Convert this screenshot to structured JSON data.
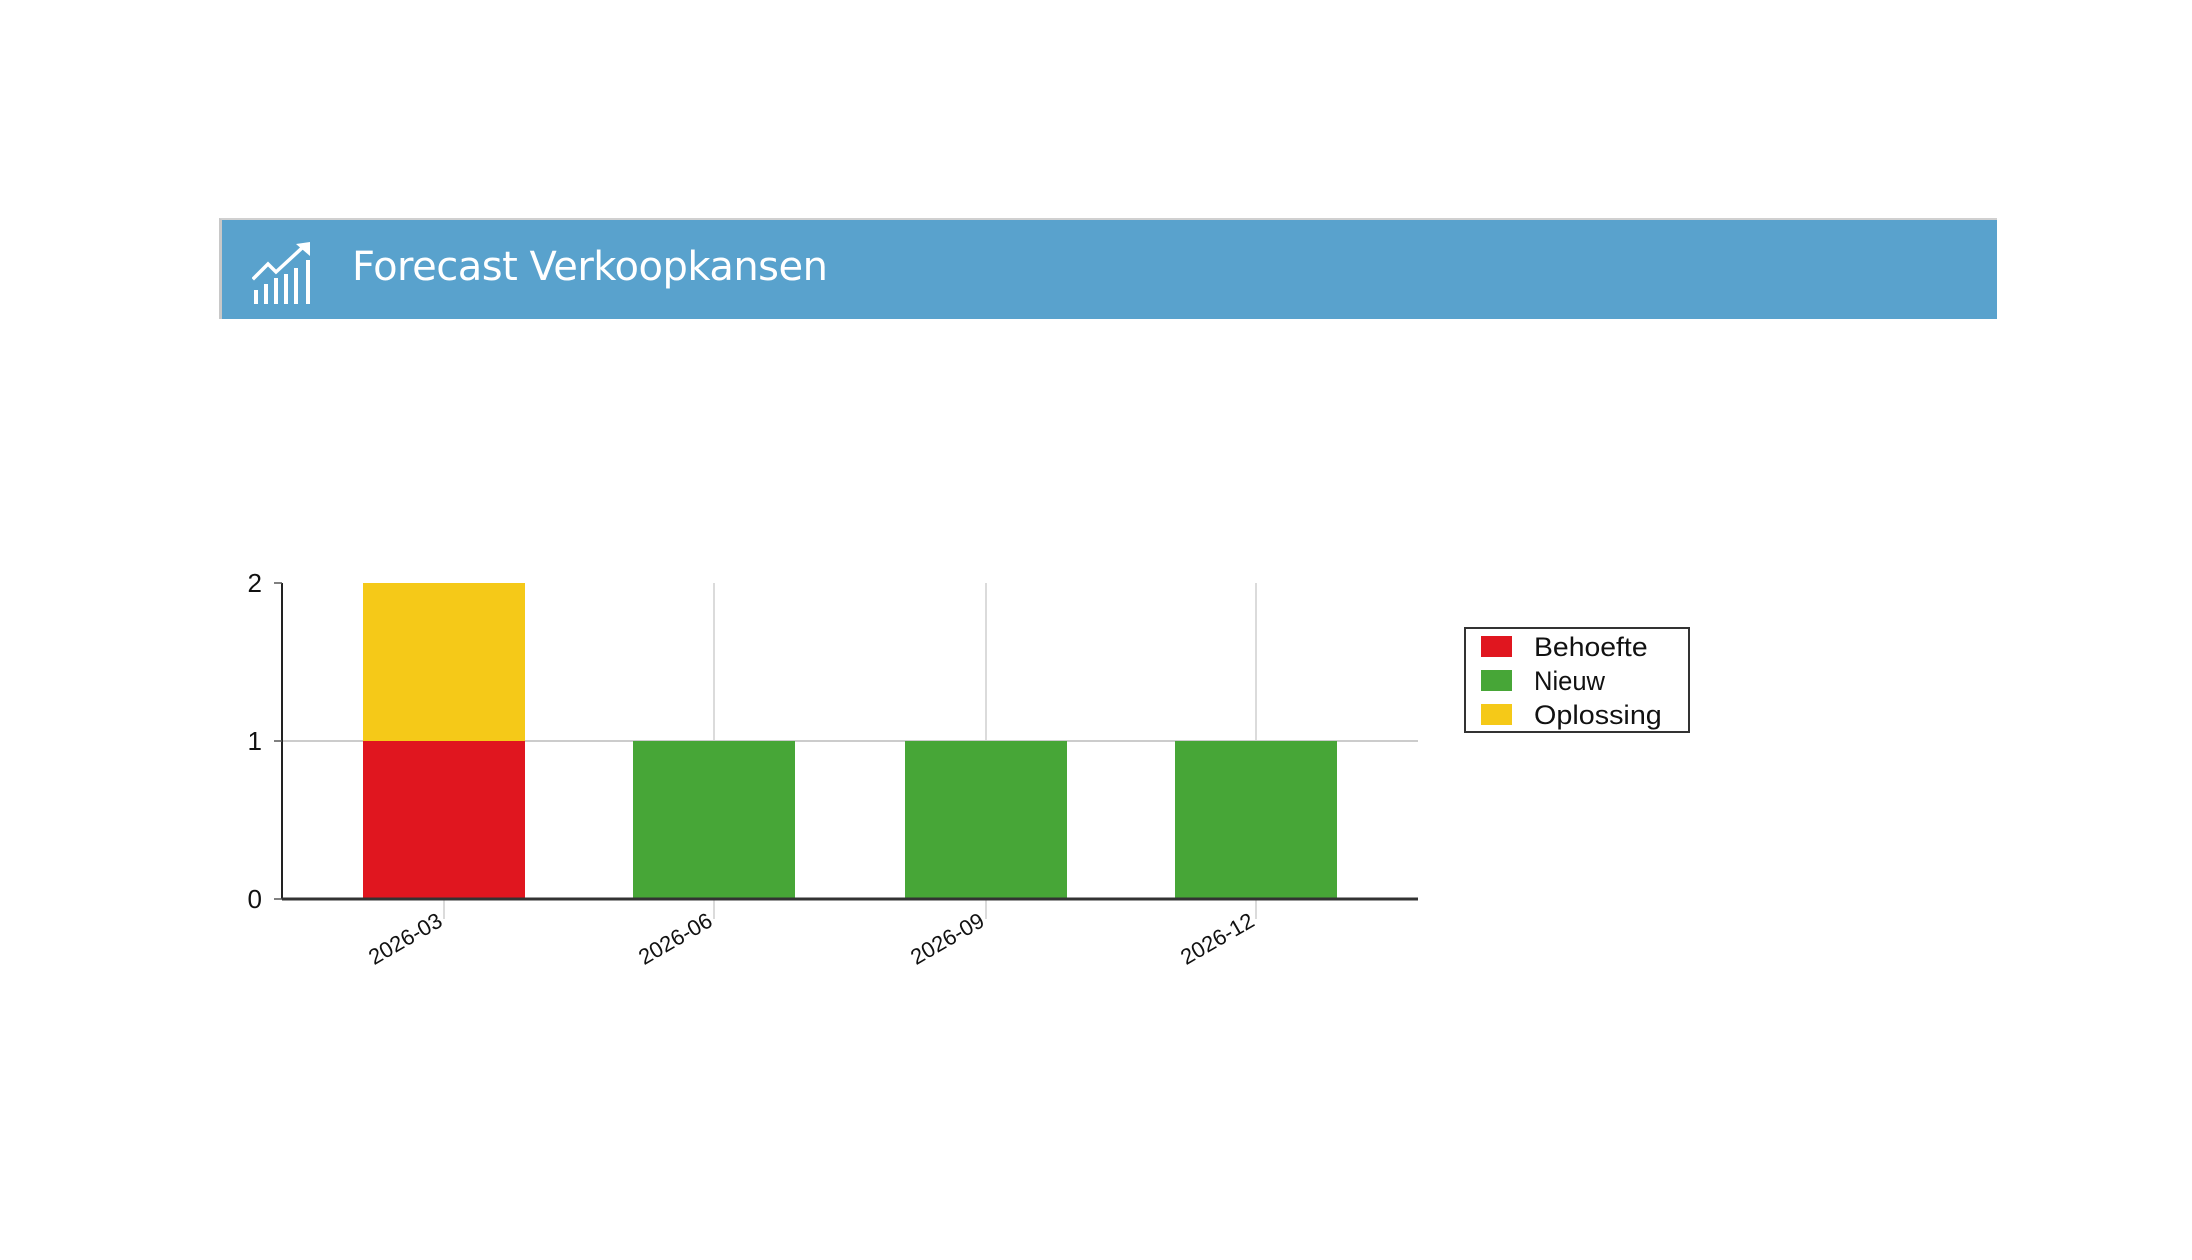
{
  "header": {
    "title": "Forecast Verkoopkansen",
    "icon": "chart-trend-icon",
    "background": "#59a2cd"
  },
  "chart_data": {
    "type": "bar",
    "stacked": true,
    "categories": [
      "2026-03",
      "2026-06",
      "2026-09",
      "2026-12"
    ],
    "series": [
      {
        "name": "Behoefte",
        "color": "#e0161f",
        "values": [
          1,
          0,
          0,
          0
        ]
      },
      {
        "name": "Nieuw",
        "color": "#47a637",
        "values": [
          0,
          1,
          1,
          1
        ]
      },
      {
        "name": "Oplossing",
        "color": "#f5c918",
        "values": [
          1,
          0,
          0,
          0
        ]
      }
    ],
    "ylim": [
      0,
      2
    ],
    "yticks": [
      "0",
      "1",
      "2"
    ],
    "grid": true,
    "legend": "right"
  }
}
